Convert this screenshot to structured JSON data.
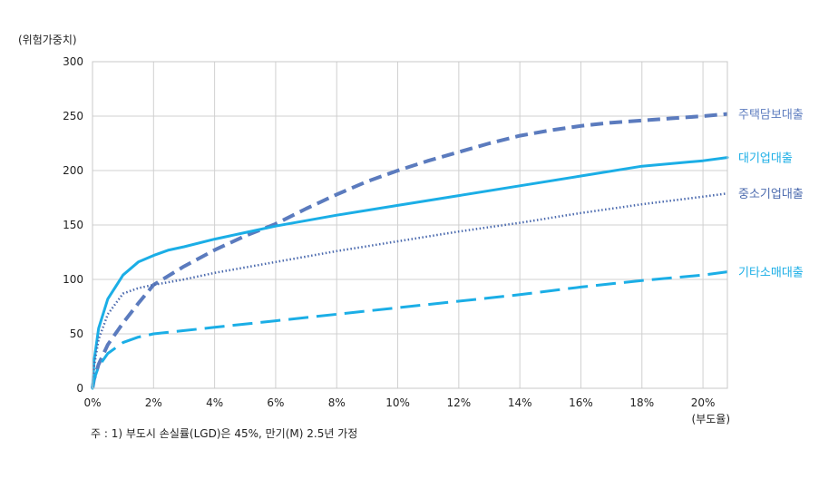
{
  "chart_data": {
    "type": "line",
    "ylabel": "(위험가중치)",
    "xlabel": "(부도율)",
    "xlim": [
      0,
      20.8
    ],
    "ylim": [
      0,
      300
    ],
    "x_ticks": [
      0,
      2,
      4,
      6,
      8,
      10,
      12,
      14,
      16,
      18,
      20
    ],
    "x_tick_labels": [
      "0%",
      "2%",
      "4%",
      "6%",
      "8%",
      "10%",
      "12%",
      "14%",
      "16%",
      "18%",
      "20%"
    ],
    "y_ticks": [
      0,
      50,
      100,
      150,
      200,
      250,
      300
    ],
    "y_tick_labels": [
      "0",
      "50",
      "100",
      "150",
      "200",
      "250",
      "300"
    ],
    "grid": true,
    "legend": "right-inline",
    "series": [
      {
        "name": "주택담보대출",
        "color": "#5B7BBE",
        "style": "dashed",
        "x": [
          0,
          0.05,
          0.2,
          0.5,
          1,
          1.5,
          2,
          3,
          4,
          5,
          6,
          7,
          8,
          9,
          10,
          11,
          12,
          13,
          14,
          15,
          16,
          17,
          18,
          19,
          20,
          20.8
        ],
        "y": [
          0,
          8,
          22,
          40,
          60,
          78,
          95,
          112,
          127,
          140,
          151,
          165,
          178,
          190,
          200,
          209,
          217,
          225,
          232,
          237,
          241,
          244,
          246,
          248,
          250,
          252
        ]
      },
      {
        "name": "대기업대출",
        "color": "#1BAEE6",
        "style": "solid",
        "x": [
          0,
          0.05,
          0.2,
          0.5,
          1,
          1.5,
          2,
          2.5,
          3,
          4,
          5,
          6,
          8,
          10,
          12,
          14,
          16,
          18,
          20,
          20.8
        ],
        "y": [
          0,
          25,
          55,
          82,
          104,
          116,
          122,
          127,
          130,
          137,
          143,
          149,
          159,
          168,
          177,
          186,
          195,
          204,
          209,
          212
        ]
      },
      {
        "name": "중소기업대출",
        "color": "#4B6AAE",
        "style": "dotted",
        "x": [
          0,
          0.05,
          0.2,
          0.5,
          1,
          1.5,
          2,
          3,
          4,
          6,
          8,
          10,
          12,
          14,
          16,
          18,
          20,
          20.8
        ],
        "y": [
          0,
          20,
          45,
          68,
          87,
          92,
          95,
          100,
          106,
          116,
          126,
          135,
          144,
          152,
          161,
          169,
          176,
          179
        ]
      },
      {
        "name": "기타소매대출",
        "color": "#1BAEE6",
        "style": "longdash",
        "x": [
          0,
          0.05,
          0.2,
          0.5,
          1,
          1.5,
          2,
          3,
          4,
          6,
          8,
          10,
          12,
          14,
          16,
          18,
          20,
          20.8
        ],
        "y": [
          0,
          8,
          20,
          32,
          42,
          47,
          50,
          53,
          56,
          62,
          68,
          74,
          80,
          86,
          93,
          99,
          104,
          107
        ]
      }
    ],
    "note": "주 : 1) 부도시 손실률(LGD)은 45%, 만기(M) 2.5년 가정"
  }
}
